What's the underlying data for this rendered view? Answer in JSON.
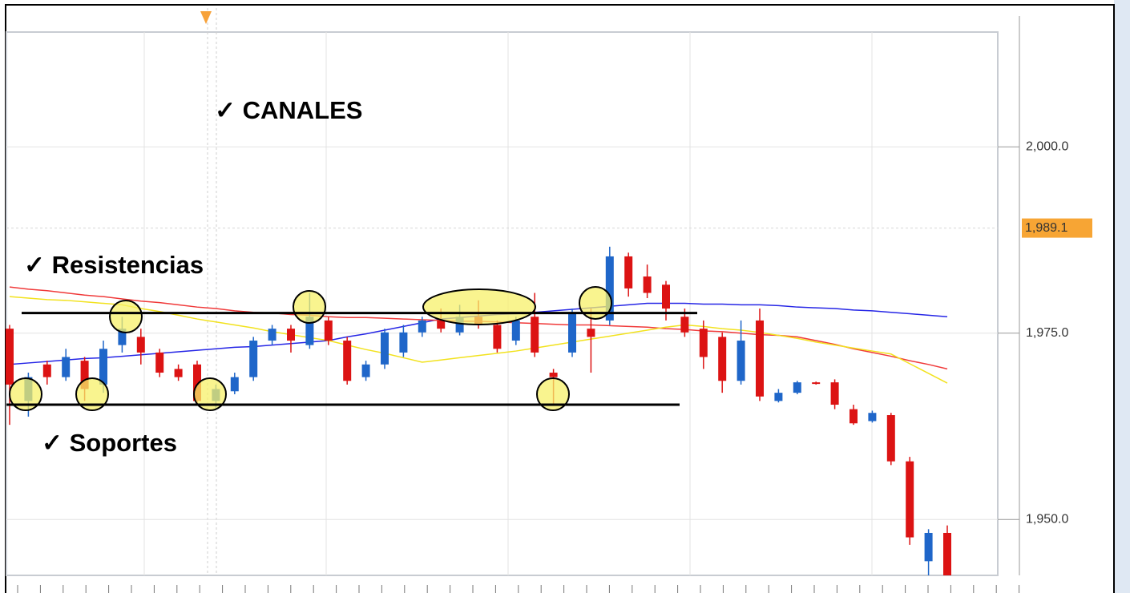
{
  "chart_data": {
    "type": "candlestick",
    "up_color": "#1f66c9",
    "down_color": "#dc1313",
    "open": [
      1975.6,
      1965.9,
      1970.8,
      1969.1,
      1971.3,
      1968.1,
      1973.4,
      1974.5,
      1972.4,
      1970.2,
      1970.8,
      1965.9,
      1967.2,
      1969.1,
      1974.0,
      1975.6,
      1973.4,
      1976.7,
      1974.0,
      1969.1,
      1970.8,
      1972.4,
      1975.1,
      1976.7,
      1975.1,
      1977.2,
      1976.1,
      1974.0,
      1977.2,
      1969.7,
      1972.4,
      1975.6,
      1976.7,
      1985.3,
      1982.6,
      1981.5,
      1977.2,
      1975.6,
      1974.5,
      1968.6,
      1976.7,
      1965.9,
      1967.0,
      1968.4,
      1968.4,
      1964.8,
      1963.2,
      1964.0,
      1957.8,
      1944.4,
      1948.2
    ],
    "high": [
      1976.1,
      1969.7,
      1971.3,
      1972.9,
      1971.8,
      1974.0,
      1977.2,
      1975.6,
      1972.9,
      1970.8,
      1971.3,
      1968.1,
      1969.7,
      1974.5,
      1976.1,
      1976.1,
      1980.4,
      1977.2,
      1974.5,
      1971.3,
      1975.6,
      1976.1,
      1977.2,
      1978.3,
      1978.8,
      1979.4,
      1976.7,
      1977.2,
      1980.4,
      1970.2,
      1978.3,
      1978.3,
      1986.6,
      1985.8,
      1984.2,
      1982.0,
      1978.3,
      1976.7,
      1975.1,
      1976.7,
      1978.3,
      1967.5,
      1968.6,
      1968.5,
      1968.8,
      1965.4,
      1964.6,
      1964.3,
      1958.4,
      1948.7,
      1949.2
    ],
    "low": [
      1962.7,
      1963.8,
      1968.1,
      1968.6,
      1965.9,
      1967.0,
      1972.4,
      1970.8,
      1969.1,
      1968.6,
      1965.4,
      1964.8,
      1966.8,
      1968.6,
      1973.4,
      1972.4,
      1972.9,
      1973.4,
      1968.1,
      1968.6,
      1970.2,
      1971.8,
      1974.5,
      1975.1,
      1974.7,
      1975.6,
      1972.4,
      1973.4,
      1971.8,
      1965.4,
      1971.8,
      1969.7,
      1976.1,
      1979.9,
      1979.7,
      1976.7,
      1974.5,
      1970.2,
      1967.0,
      1968.1,
      1965.9,
      1965.7,
      1966.8,
      1968.1,
      1964.8,
      1962.7,
      1963.0,
      1957.3,
      1946.6,
      1942.5,
      1942.5
    ],
    "close": [
      1968.1,
      1969.1,
      1969.1,
      1971.8,
      1967.5,
      1972.9,
      1975.6,
      1972.4,
      1969.7,
      1969.1,
      1965.9,
      1967.5,
      1969.1,
      1974.0,
      1975.6,
      1974.0,
      1977.2,
      1974.0,
      1968.6,
      1970.8,
      1975.1,
      1975.1,
      1976.7,
      1975.6,
      1977.2,
      1976.1,
      1972.9,
      1976.7,
      1972.4,
      1969.1,
      1977.7,
      1974.5,
      1985.3,
      1981.0,
      1980.4,
      1978.3,
      1975.1,
      1971.8,
      1968.6,
      1974.0,
      1966.5,
      1967.0,
      1968.4,
      1968.3,
      1965.4,
      1962.9,
      1964.3,
      1957.8,
      1947.6,
      1948.2,
      1942.5
    ],
    "series": [
      {
        "color": "#2626e6",
        "values": [
          1970.8,
          1971.0,
          1971.2,
          1971.4,
          1971.6,
          1971.7,
          1971.9,
          1972.1,
          1972.3,
          1972.5,
          1972.7,
          1972.9,
          1973.1,
          1973.2,
          1973.4,
          1973.6,
          1973.8,
          1974.0,
          1974.5,
          1974.9,
          1975.4,
          1975.9,
          1976.4,
          1976.9,
          1977.1,
          1977.3,
          1977.5,
          1977.6,
          1977.8,
          1978.0,
          1978.2,
          1978.4,
          1978.6,
          1978.8,
          1979.0,
          1979.0,
          1979.0,
          1978.9,
          1978.9,
          1978.8,
          1978.8,
          1978.7,
          1978.5,
          1978.4,
          1978.3,
          1978.1,
          1978.0,
          1977.8,
          1977.6,
          1977.4,
          1977.2
        ]
      },
      {
        "color": "#f03a3a",
        "values": [
          1981.2,
          1980.9,
          1980.7,
          1980.4,
          1980.1,
          1979.9,
          1979.6,
          1979.3,
          1979.1,
          1978.8,
          1978.5,
          1978.3,
          1978.0,
          1977.8,
          1977.7,
          1977.5,
          1977.4,
          1977.2,
          1977.1,
          1977.1,
          1977.0,
          1976.9,
          1976.8,
          1976.7,
          1976.6,
          1976.6,
          1976.5,
          1976.4,
          1976.3,
          1976.2,
          1976.1,
          1976.1,
          1976.0,
          1975.9,
          1975.8,
          1975.6,
          1975.5,
          1975.3,
          1975.2,
          1975.0,
          1974.8,
          1974.7,
          1974.5,
          1974.0,
          1973.5,
          1972.9,
          1972.4,
          1971.9,
          1971.3,
          1970.8,
          1970.2
        ]
      },
      {
        "color": "#f2e21e",
        "values": [
          1979.9,
          1979.7,
          1979.5,
          1979.4,
          1979.2,
          1979.0,
          1978.8,
          1978.3,
          1977.9,
          1977.4,
          1976.9,
          1976.5,
          1976.1,
          1975.7,
          1975.2,
          1974.8,
          1974.4,
          1974.0,
          1973.4,
          1972.8,
          1972.3,
          1971.7,
          1971.1,
          1971.4,
          1971.7,
          1972.0,
          1972.3,
          1972.6,
          1973.0,
          1973.4,
          1973.8,
          1974.2,
          1974.6,
          1975.0,
          1975.4,
          1975.8,
          1976.1,
          1975.9,
          1975.6,
          1975.4,
          1975.1,
          1974.7,
          1974.3,
          1973.8,
          1973.4,
          1973.0,
          1972.6,
          1972.2,
          1970.9,
          1969.6,
          1968.3
        ]
      }
    ],
    "ylim": [
      1942.5,
      2015.4
    ],
    "yticks": [
      {
        "value": 1950,
        "label": "1,950.0"
      },
      {
        "value": 1975,
        "label": "1,975.0"
      },
      {
        "value": 2000,
        "label": "2,000.0"
      }
    ],
    "grid": true,
    "current_price": {
      "value": 1989.1,
      "label": "1,989.1"
    },
    "annotations": {
      "channels": "✓ CANALES",
      "resistance": {
        "label": "✓ Resistencias",
        "level": 1977.7
      },
      "support": {
        "label": "✓ Soportes",
        "level": 1965.4
      }
    }
  }
}
